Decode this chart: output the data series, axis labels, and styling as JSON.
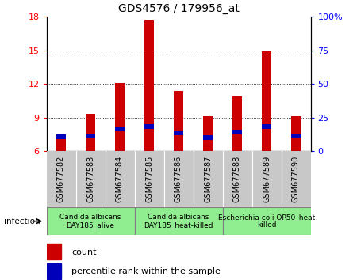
{
  "title": "GDS4576 / 179956_at",
  "samples": [
    "GSM677582",
    "GSM677583",
    "GSM677584",
    "GSM677585",
    "GSM677586",
    "GSM677587",
    "GSM677588",
    "GSM677589",
    "GSM677590"
  ],
  "count_values": [
    6.8,
    9.3,
    12.1,
    17.7,
    11.4,
    9.1,
    10.9,
    14.9,
    9.1
  ],
  "percentile_left_values": [
    7.3,
    7.4,
    8.0,
    8.2,
    7.6,
    7.2,
    7.7,
    8.2,
    7.4
  ],
  "bar_bottom": 6.0,
  "ylim_left": [
    6,
    18
  ],
  "ylim_right": [
    0,
    100
  ],
  "yticks_left": [
    6,
    9,
    12,
    15,
    18
  ],
  "yticks_right": [
    0,
    25,
    50,
    75,
    100
  ],
  "ytick_labels_right": [
    "0",
    "25",
    "50",
    "75",
    "100%"
  ],
  "groups": [
    {
      "label": "Candida albicans\nDAY185_alive",
      "start": 0,
      "end": 3
    },
    {
      "label": "Candida albicans\nDAY185_heat-killed",
      "start": 3,
      "end": 6
    },
    {
      "label": "Escherichia coli OP50_heat\nkilled",
      "start": 6,
      "end": 9
    }
  ],
  "infection_label": "infection",
  "count_color": "#cc0000",
  "percentile_color": "#0000bb",
  "bar_width": 0.35,
  "tick_label_gray_bg": "#c8c8c8",
  "group_bg_color": "#90ee90",
  "group_label_font_size": 6.5,
  "sample_font_size": 7.0,
  "title_fontsize": 10
}
